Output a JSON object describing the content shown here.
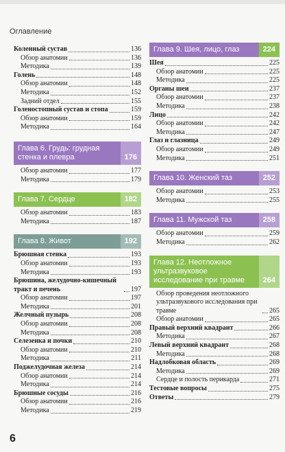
{
  "header": {
    "title": "Оглавление"
  },
  "left": [
    {
      "text": "Коленный сустав",
      "page": 136
    },
    {
      "text": "Обзор анатомии",
      "page": 136
    },
    {
      "text": "Методика",
      "page": 139
    },
    {
      "text": "Голень",
      "page": 148
    },
    {
      "text": "Обзор анатомии",
      "page": 148
    },
    {
      "text": "Методика",
      "page": 152
    },
    {
      "text": "Задний отдел",
      "page": 155
    },
    {
      "text": "Голеностопный сустав и стопа",
      "page": 159
    },
    {
      "text": "Обзор анатомии",
      "page": 159
    },
    {
      "text": "Методика",
      "page": 164
    },
    {
      "chapter": "Глава 6.",
      "title": "Грудь: грудная стенка и плевра",
      "page": 176
    },
    {
      "text": "Обзор анатомии",
      "page": 177
    },
    {
      "text": "Методика",
      "page": 179
    },
    {
      "chapter": "Глава 7.",
      "title": "Сердце",
      "page": 182
    },
    {
      "text": "Обзор анатомии",
      "page": 183
    },
    {
      "text": "Методика",
      "page": 187
    },
    {
      "chapter": "Глава 8.",
      "title": "Живот",
      "page": 192
    },
    {
      "text": "Брюшная стенка",
      "page": 193
    },
    {
      "text": "Обзор анатомии",
      "page": 193
    },
    {
      "text": "Методика",
      "page": 193
    },
    {
      "text": "Брюшина, желудочно-кишечный тракт и печень",
      "page": 197
    },
    {
      "text": "Обзор анатомии",
      "page": 197
    },
    {
      "text": "Методика",
      "page": 201
    },
    {
      "text": "Желчный пузырь",
      "page": 208
    },
    {
      "text": "Обзор анатомии",
      "page": 208
    },
    {
      "text": "Методика",
      "page": 208
    },
    {
      "text": "Селезенка и почки",
      "page": 210
    },
    {
      "text": "Обзор анатомии",
      "page": 210
    },
    {
      "text": "Методика",
      "page": 211
    },
    {
      "text": "Поджелудочная железа",
      "page": 214
    },
    {
      "text": "Обзор анатомии",
      "page": 214
    },
    {
      "text": "Методика",
      "page": 214
    },
    {
      "text": "Брюшные сосуды",
      "page": 216
    },
    {
      "text": "Обзор анатомии",
      "page": 216
    },
    {
      "text": "Методика",
      "page": 219
    }
  ],
  "right": [
    {
      "chapter": "Глава 9.",
      "title": "Шея, лицо, глаз",
      "page": 224
    },
    {
      "text": "Шея",
      "page": 225
    },
    {
      "text": "Обзор анатомии",
      "page": 225
    },
    {
      "text": "Методика",
      "page": 225
    },
    {
      "text": "Органы шеи",
      "page": 237
    },
    {
      "text": "Обзор анатомии",
      "page": 237
    },
    {
      "text": "Методика",
      "page": 238
    },
    {
      "text": "Лицо",
      "page": 242
    },
    {
      "text": "Обзор анатомии",
      "page": 242
    },
    {
      "text": "Методика",
      "page": 247
    },
    {
      "text": "Глаз и глазница",
      "page": 249
    },
    {
      "text": "Обзор анатомии",
      "page": 249
    },
    {
      "text": "Методика",
      "page": 251
    },
    {
      "chapter": "Глава 10.",
      "title": "Женский таз",
      "page": 252
    },
    {
      "text": "Обзор анатомии",
      "page": 253
    },
    {
      "text": "Методика",
      "page": 255
    },
    {
      "chapter": "Глава 11.",
      "title": "Мужской таз",
      "page": 258
    },
    {
      "text": "Обзор анатомии",
      "page": 259
    },
    {
      "text": "Методика",
      "page": 262
    },
    {
      "chapter": "Глава 12.",
      "title": "Неотложное ультразвуковое исследование при травме",
      "page": 264
    },
    {
      "text": "Обзор проведения неотложного ультразвукового исследования при травме",
      "page": 265
    },
    {
      "text": "Обзор анатомии",
      "page": 265
    },
    {
      "text": "Правый верхний квадрант",
      "page": 266
    },
    {
      "text": "Методика",
      "page": 267
    },
    {
      "text": "Левый верхний квадрант",
      "page": 268
    },
    {
      "text": "Методика",
      "page": 268
    },
    {
      "text": "Надлобковая область",
      "page": 269
    },
    {
      "text": "Методика",
      "page": 269
    },
    {
      "text": "Сердце и полость перикарда",
      "page": 271
    },
    {
      "text": "Тестовые вопросы",
      "page": 275
    },
    {
      "text": "Ответы",
      "page": 279
    }
  ],
  "page_number": 6
}
